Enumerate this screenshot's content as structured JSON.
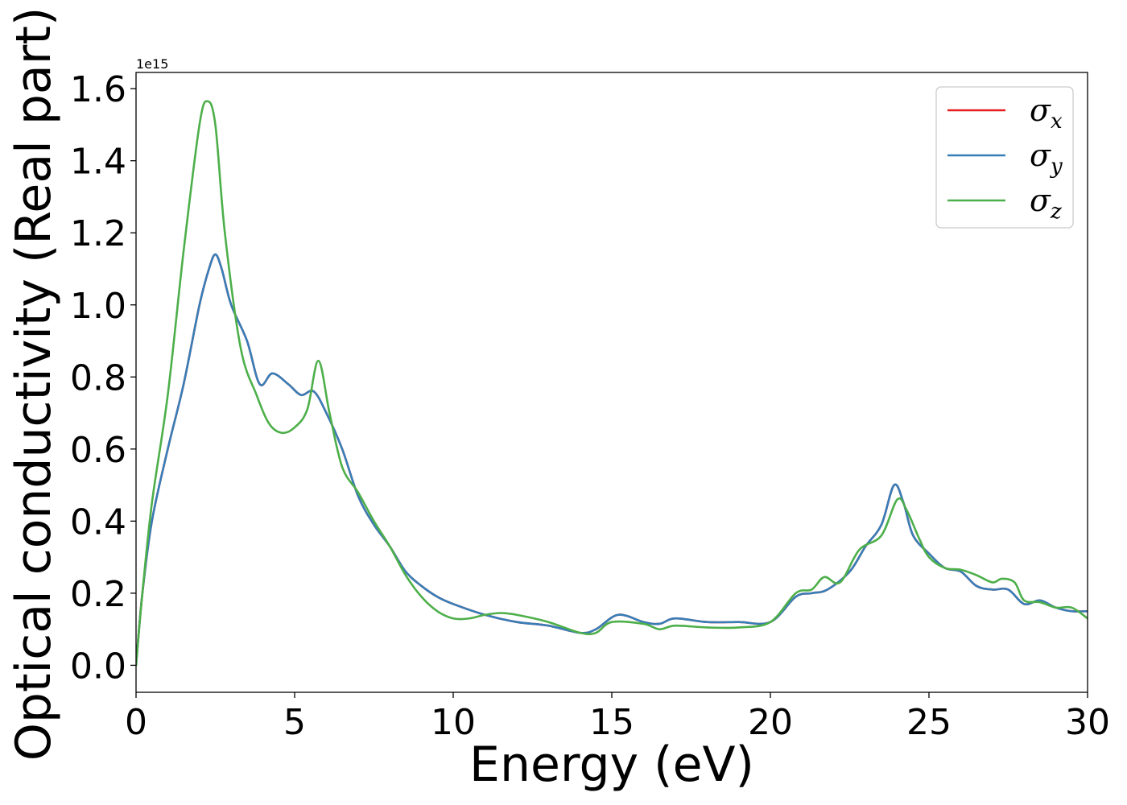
{
  "chart_data": {
    "type": "line",
    "xlabel": "Energy (eV)",
    "ylabel": "Optical conductivity (Real part)",
    "y_offset_label": "1e15",
    "xlim": [
      0,
      30
    ],
    "ylim": [
      -0.075,
      1.645
    ],
    "xticks": [
      0,
      5,
      10,
      15,
      20,
      25,
      30
    ],
    "xtick_labels": [
      "0",
      "5",
      "10",
      "15",
      "20",
      "25",
      "30"
    ],
    "yticks": [
      0.0,
      0.2,
      0.4,
      0.6,
      0.8,
      1.0,
      1.2,
      1.4,
      1.6
    ],
    "ytick_labels": [
      "0.0",
      "0.2",
      "0.4",
      "0.6",
      "0.8",
      "1.0",
      "1.2",
      "1.4",
      "1.6"
    ],
    "grid": false,
    "legend": {
      "position": "top-right"
    },
    "series": [
      {
        "name": "σx",
        "label_base": "σ",
        "label_sub": "x",
        "color": "#e41a1c",
        "x": [
          0,
          0.2,
          0.5,
          1.0,
          1.5,
          2.0,
          2.3,
          2.5,
          2.7,
          3.0,
          3.5,
          3.9,
          4.3,
          4.8,
          5.2,
          5.6,
          6.0,
          6.5,
          7.0,
          7.5,
          8.0,
          8.5,
          9.0,
          9.5,
          10.0,
          11.0,
          12.0,
          13.0,
          14.0,
          14.5,
          15.2,
          16.0,
          16.5,
          17.0,
          18.0,
          19.0,
          20.0,
          20.8,
          21.3,
          21.8,
          22.5,
          23.0,
          23.5,
          23.9,
          24.2,
          24.5,
          25.0,
          25.5,
          26.0,
          26.5,
          27.0,
          27.5,
          28.0,
          28.5,
          29.0,
          29.5,
          30.0
        ],
        "y": [
          0.0,
          0.2,
          0.4,
          0.6,
          0.78,
          1.0,
          1.1,
          1.14,
          1.1,
          1.0,
          0.9,
          0.78,
          0.81,
          0.78,
          0.75,
          0.76,
          0.7,
          0.6,
          0.47,
          0.39,
          0.33,
          0.26,
          0.22,
          0.19,
          0.17,
          0.14,
          0.12,
          0.11,
          0.09,
          0.1,
          0.14,
          0.12,
          0.115,
          0.13,
          0.12,
          0.12,
          0.12,
          0.19,
          0.2,
          0.21,
          0.26,
          0.33,
          0.39,
          0.5,
          0.45,
          0.36,
          0.31,
          0.27,
          0.26,
          0.22,
          0.21,
          0.21,
          0.17,
          0.18,
          0.16,
          0.15,
          0.15
        ]
      },
      {
        "name": "σy",
        "label_base": "σ",
        "label_sub": "y",
        "color": "#377eb8",
        "x": [
          0,
          0.2,
          0.5,
          1.0,
          1.5,
          2.0,
          2.3,
          2.5,
          2.7,
          3.0,
          3.5,
          3.9,
          4.3,
          4.8,
          5.2,
          5.6,
          6.0,
          6.5,
          7.0,
          7.5,
          8.0,
          8.5,
          9.0,
          9.5,
          10.0,
          11.0,
          12.0,
          13.0,
          14.0,
          14.5,
          15.2,
          16.0,
          16.5,
          17.0,
          18.0,
          19.0,
          20.0,
          20.8,
          21.3,
          21.8,
          22.5,
          23.0,
          23.5,
          23.9,
          24.2,
          24.5,
          25.0,
          25.5,
          26.0,
          26.5,
          27.0,
          27.5,
          28.0,
          28.5,
          29.0,
          29.5,
          30.0
        ],
        "y": [
          0.0,
          0.2,
          0.4,
          0.6,
          0.78,
          1.0,
          1.1,
          1.14,
          1.1,
          1.0,
          0.9,
          0.78,
          0.81,
          0.78,
          0.75,
          0.76,
          0.7,
          0.6,
          0.47,
          0.39,
          0.33,
          0.26,
          0.22,
          0.19,
          0.17,
          0.14,
          0.12,
          0.11,
          0.09,
          0.1,
          0.14,
          0.12,
          0.115,
          0.13,
          0.12,
          0.12,
          0.12,
          0.19,
          0.2,
          0.21,
          0.26,
          0.33,
          0.39,
          0.5,
          0.45,
          0.36,
          0.31,
          0.27,
          0.26,
          0.22,
          0.21,
          0.21,
          0.17,
          0.18,
          0.16,
          0.15,
          0.15
        ]
      },
      {
        "name": "σz",
        "label_base": "σ",
        "label_sub": "z",
        "color": "#4daf4a",
        "x": [
          0,
          0.2,
          0.5,
          1.0,
          1.5,
          2.0,
          2.25,
          2.5,
          2.8,
          3.3,
          3.8,
          4.2,
          4.6,
          5.0,
          5.4,
          5.75,
          6.1,
          6.5,
          7.0,
          7.5,
          8.0,
          8.5,
          9.0,
          9.5,
          10.0,
          10.5,
          11.0,
          11.5,
          12.0,
          13.0,
          14.0,
          14.5,
          15.0,
          16.0,
          16.5,
          17.0,
          18.0,
          19.0,
          20.0,
          20.8,
          21.3,
          21.7,
          22.2,
          22.8,
          23.5,
          24.0,
          24.3,
          24.7,
          25.0,
          25.5,
          26.0,
          26.5,
          27.0,
          27.3,
          27.7,
          28.0,
          28.5,
          29.0,
          29.5,
          30.0
        ],
        "y": [
          0.0,
          0.2,
          0.45,
          0.75,
          1.15,
          1.5,
          1.565,
          1.5,
          1.2,
          0.88,
          0.75,
          0.67,
          0.645,
          0.66,
          0.71,
          0.845,
          0.7,
          0.55,
          0.48,
          0.4,
          0.33,
          0.25,
          0.19,
          0.15,
          0.13,
          0.13,
          0.14,
          0.145,
          0.14,
          0.12,
          0.09,
          0.09,
          0.12,
          0.115,
          0.1,
          0.11,
          0.105,
          0.105,
          0.12,
          0.2,
          0.21,
          0.245,
          0.23,
          0.32,
          0.36,
          0.46,
          0.43,
          0.35,
          0.3,
          0.27,
          0.265,
          0.25,
          0.23,
          0.24,
          0.23,
          0.18,
          0.175,
          0.16,
          0.16,
          0.13
        ]
      }
    ]
  }
}
